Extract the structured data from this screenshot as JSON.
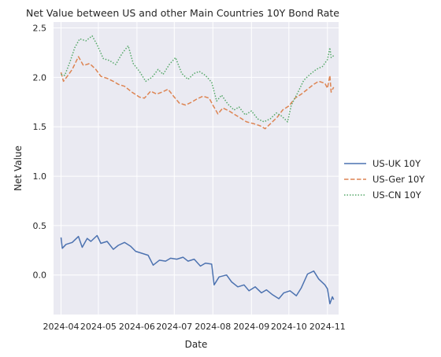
{
  "chart_data": {
    "type": "line",
    "title": "Net Value between US and other Main Countries 10Y Bond Rate",
    "xlabel": "Date",
    "ylabel": "Net Value",
    "xlim": [
      "2024-03-26",
      "2024-11-10"
    ],
    "ylim": [
      -0.4,
      2.56
    ],
    "x_ticks": [
      "2024-04-01",
      "2024-05-01",
      "2024-06-01",
      "2024-07-01",
      "2024-08-01",
      "2024-09-01",
      "2024-10-01",
      "2024-11-01"
    ],
    "x_tick_labels": [
      "2024-04",
      "2024-05",
      "2024-06",
      "2024-07",
      "2024-08",
      "2024-09",
      "2024-10",
      "2024-11"
    ],
    "y_ticks": [
      0.0,
      0.5,
      1.0,
      1.5,
      2.0,
      2.5
    ],
    "y_tick_labels": [
      "0.0",
      "0.5",
      "1.0",
      "1.5",
      "2.0",
      "2.5"
    ],
    "grid": true,
    "legend_position": "right-outside",
    "background_color": "#eaeaf2",
    "series": [
      {
        "name": "US-UK 10Y",
        "color": "#4c72b0",
        "line_style": "solid",
        "points": [
          [
            "2024-04-01",
            0.38
          ],
          [
            "2024-04-02",
            0.27
          ],
          [
            "2024-04-05",
            0.31
          ],
          [
            "2024-04-10",
            0.33
          ],
          [
            "2024-04-15",
            0.39
          ],
          [
            "2024-04-18",
            0.28
          ],
          [
            "2024-04-22",
            0.37
          ],
          [
            "2024-04-25",
            0.34
          ],
          [
            "2024-04-30",
            0.4
          ],
          [
            "2024-05-03",
            0.32
          ],
          [
            "2024-05-08",
            0.34
          ],
          [
            "2024-05-13",
            0.26
          ],
          [
            "2024-05-17",
            0.3
          ],
          [
            "2024-05-22",
            0.33
          ],
          [
            "2024-05-27",
            0.29
          ],
          [
            "2024-05-31",
            0.24
          ],
          [
            "2024-06-05",
            0.22
          ],
          [
            "2024-06-10",
            0.2
          ],
          [
            "2024-06-14",
            0.1
          ],
          [
            "2024-06-19",
            0.15
          ],
          [
            "2024-06-24",
            0.14
          ],
          [
            "2024-06-28",
            0.17
          ],
          [
            "2024-07-03",
            0.16
          ],
          [
            "2024-07-08",
            0.18
          ],
          [
            "2024-07-12",
            0.14
          ],
          [
            "2024-07-17",
            0.16
          ],
          [
            "2024-07-22",
            0.09
          ],
          [
            "2024-07-26",
            0.12
          ],
          [
            "2024-07-31",
            0.11
          ],
          [
            "2024-08-02",
            -0.1
          ],
          [
            "2024-08-06",
            -0.02
          ],
          [
            "2024-08-12",
            0.0
          ],
          [
            "2024-08-16",
            -0.07
          ],
          [
            "2024-08-21",
            -0.12
          ],
          [
            "2024-08-26",
            -0.1
          ],
          [
            "2024-08-30",
            -0.16
          ],
          [
            "2024-09-04",
            -0.12
          ],
          [
            "2024-09-09",
            -0.18
          ],
          [
            "2024-09-13",
            -0.15
          ],
          [
            "2024-09-18",
            -0.2
          ],
          [
            "2024-09-23",
            -0.24
          ],
          [
            "2024-09-27",
            -0.18
          ],
          [
            "2024-10-02",
            -0.16
          ],
          [
            "2024-10-07",
            -0.21
          ],
          [
            "2024-10-11",
            -0.13
          ],
          [
            "2024-10-16",
            0.01
          ],
          [
            "2024-10-21",
            0.04
          ],
          [
            "2024-10-25",
            -0.04
          ],
          [
            "2024-10-30",
            -0.1
          ],
          [
            "2024-11-01",
            -0.14
          ],
          [
            "2024-11-03",
            -0.29
          ],
          [
            "2024-11-05",
            -0.22
          ],
          [
            "2024-11-06",
            -0.25
          ]
        ]
      },
      {
        "name": "US-Ger 10Y",
        "color": "#dd8452",
        "line_style": "dashed",
        "points": [
          [
            "2024-04-01",
            2.05
          ],
          [
            "2024-04-03",
            1.96
          ],
          [
            "2024-04-06",
            2.01
          ],
          [
            "2024-04-10",
            2.08
          ],
          [
            "2024-04-15",
            2.21
          ],
          [
            "2024-04-19",
            2.12
          ],
          [
            "2024-04-24",
            2.14
          ],
          [
            "2024-04-29",
            2.08
          ],
          [
            "2024-05-03",
            2.01
          ],
          [
            "2024-05-08",
            1.99
          ],
          [
            "2024-05-13",
            1.96
          ],
          [
            "2024-05-17",
            1.93
          ],
          [
            "2024-05-22",
            1.91
          ],
          [
            "2024-05-28",
            1.85
          ],
          [
            "2024-06-03",
            1.8
          ],
          [
            "2024-06-07",
            1.79
          ],
          [
            "2024-06-12",
            1.86
          ],
          [
            "2024-06-17",
            1.83
          ],
          [
            "2024-06-21",
            1.85
          ],
          [
            "2024-06-26",
            1.88
          ],
          [
            "2024-07-01",
            1.8
          ],
          [
            "2024-07-05",
            1.74
          ],
          [
            "2024-07-10",
            1.72
          ],
          [
            "2024-07-15",
            1.75
          ],
          [
            "2024-07-19",
            1.78
          ],
          [
            "2024-07-24",
            1.81
          ],
          [
            "2024-07-29",
            1.79
          ],
          [
            "2024-08-01",
            1.72
          ],
          [
            "2024-08-05",
            1.63
          ],
          [
            "2024-08-09",
            1.69
          ],
          [
            "2024-08-14",
            1.66
          ],
          [
            "2024-08-19",
            1.62
          ],
          [
            "2024-08-23",
            1.59
          ],
          [
            "2024-08-28",
            1.55
          ],
          [
            "2024-09-03",
            1.53
          ],
          [
            "2024-09-08",
            1.51
          ],
          [
            "2024-09-12",
            1.48
          ],
          [
            "2024-09-17",
            1.54
          ],
          [
            "2024-09-22",
            1.6
          ],
          [
            "2024-09-26",
            1.67
          ],
          [
            "2024-10-01",
            1.71
          ],
          [
            "2024-10-06",
            1.79
          ],
          [
            "2024-10-11",
            1.83
          ],
          [
            "2024-10-16",
            1.88
          ],
          [
            "2024-10-21",
            1.93
          ],
          [
            "2024-10-25",
            1.96
          ],
          [
            "2024-10-30",
            1.94
          ],
          [
            "2024-11-01",
            1.89
          ],
          [
            "2024-11-03",
            2.02
          ],
          [
            "2024-11-04",
            1.85
          ],
          [
            "2024-11-06",
            1.9
          ]
        ]
      },
      {
        "name": "US-CN 10Y",
        "color": "#55a868",
        "line_style": "dotted",
        "points": [
          [
            "2024-04-01",
            2.03
          ],
          [
            "2024-04-04",
            2.02
          ],
          [
            "2024-04-08",
            2.15
          ],
          [
            "2024-04-12",
            2.3
          ],
          [
            "2024-04-16",
            2.39
          ],
          [
            "2024-04-21",
            2.37
          ],
          [
            "2024-04-26",
            2.42
          ],
          [
            "2024-04-30",
            2.33
          ],
          [
            "2024-05-05",
            2.19
          ],
          [
            "2024-05-10",
            2.17
          ],
          [
            "2024-05-15",
            2.13
          ],
          [
            "2024-05-20",
            2.24
          ],
          [
            "2024-05-25",
            2.32
          ],
          [
            "2024-05-29",
            2.14
          ],
          [
            "2024-06-03",
            2.06
          ],
          [
            "2024-06-08",
            1.96
          ],
          [
            "2024-06-13",
            2.0
          ],
          [
            "2024-06-18",
            2.08
          ],
          [
            "2024-06-22",
            2.03
          ],
          [
            "2024-06-27",
            2.13
          ],
          [
            "2024-07-02",
            2.2
          ],
          [
            "2024-07-07",
            2.04
          ],
          [
            "2024-07-12",
            1.98
          ],
          [
            "2024-07-17",
            2.04
          ],
          [
            "2024-07-21",
            2.06
          ],
          [
            "2024-07-26",
            2.02
          ],
          [
            "2024-07-31",
            1.95
          ],
          [
            "2024-08-04",
            1.76
          ],
          [
            "2024-08-08",
            1.82
          ],
          [
            "2024-08-13",
            1.73
          ],
          [
            "2024-08-18",
            1.67
          ],
          [
            "2024-08-22",
            1.7
          ],
          [
            "2024-08-27",
            1.62
          ],
          [
            "2024-09-01",
            1.66
          ],
          [
            "2024-09-06",
            1.58
          ],
          [
            "2024-09-11",
            1.55
          ],
          [
            "2024-09-16",
            1.58
          ],
          [
            "2024-09-21",
            1.64
          ],
          [
            "2024-09-25",
            1.61
          ],
          [
            "2024-09-30",
            1.55
          ],
          [
            "2024-10-03",
            1.72
          ],
          [
            "2024-10-08",
            1.84
          ],
          [
            "2024-10-13",
            1.97
          ],
          [
            "2024-10-18",
            2.03
          ],
          [
            "2024-10-23",
            2.08
          ],
          [
            "2024-10-28",
            2.11
          ],
          [
            "2024-11-01",
            2.18
          ],
          [
            "2024-11-03",
            2.3
          ],
          [
            "2024-11-04",
            2.2
          ],
          [
            "2024-11-06",
            2.22
          ]
        ]
      }
    ]
  }
}
